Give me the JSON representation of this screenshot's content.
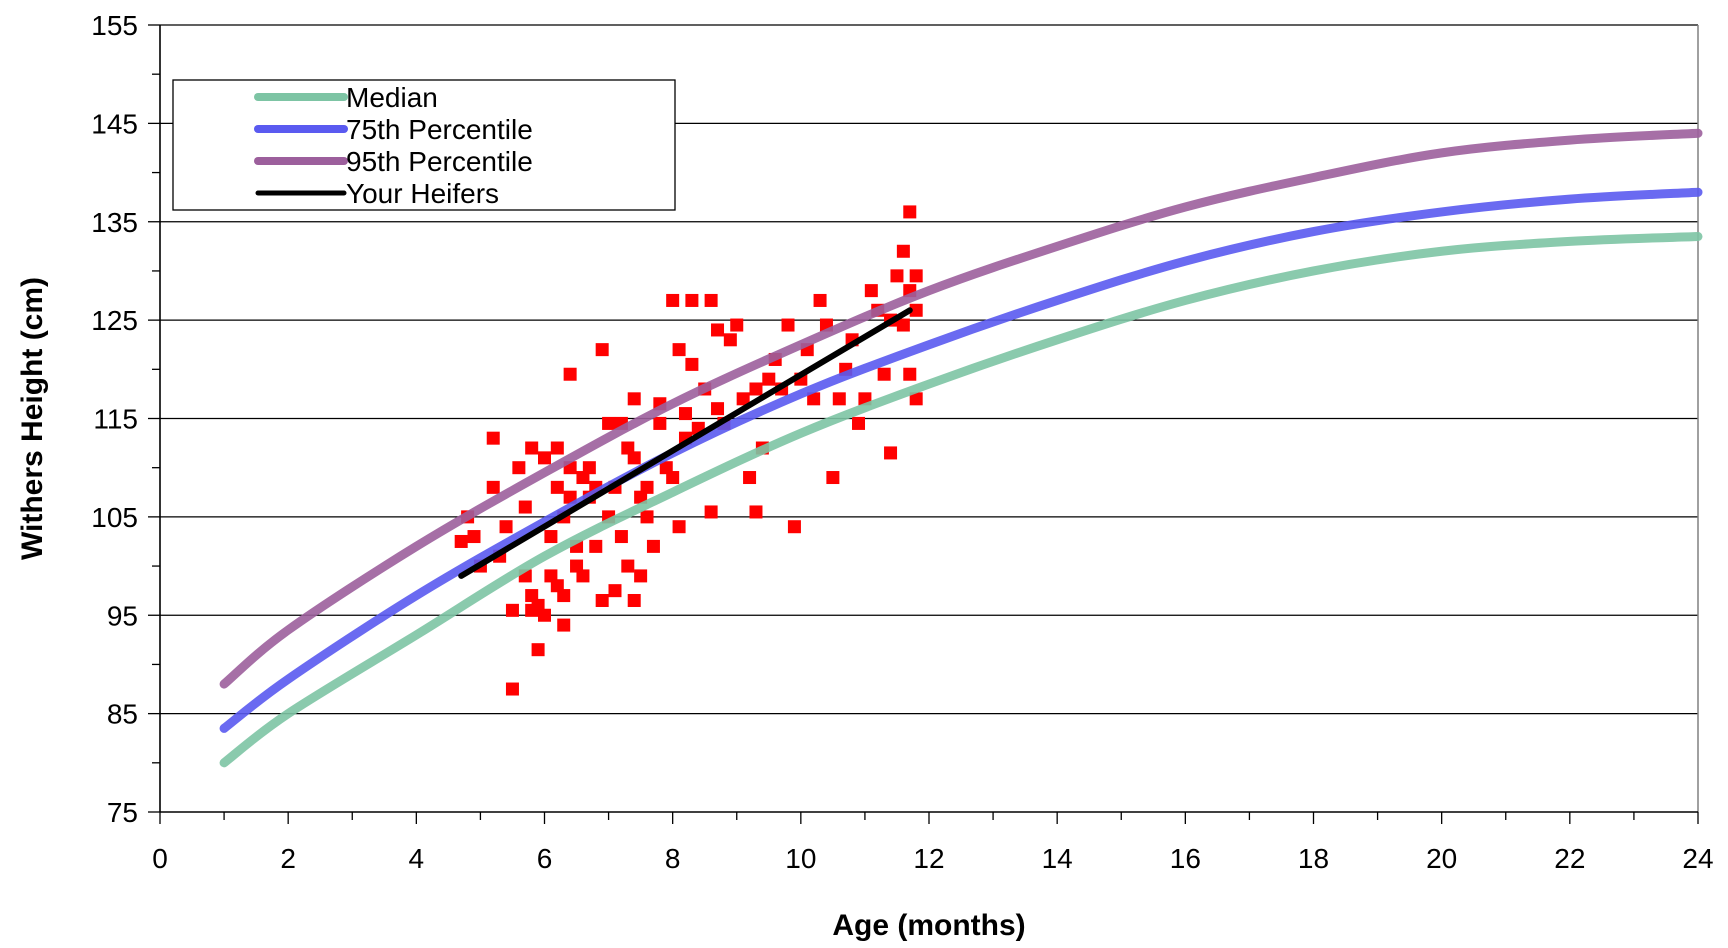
{
  "chart_data": {
    "type": "line",
    "title": "",
    "xlabel": "Age (months)",
    "ylabel": "Withers Height (cm)",
    "xlim": [
      0,
      24
    ],
    "ylim": [
      75,
      155
    ],
    "x_ticks": [
      0,
      2,
      4,
      6,
      8,
      10,
      12,
      14,
      16,
      18,
      20,
      22,
      24
    ],
    "x_tick_labels": [
      "0",
      "2",
      "4",
      "6",
      "8",
      "10",
      "12",
      "14",
      "16",
      "18",
      "20",
      "22",
      "24"
    ],
    "y_ticks": [
      75,
      85,
      95,
      105,
      115,
      125,
      135,
      145,
      155
    ],
    "y_tick_labels": [
      "75",
      "85",
      "95",
      "105",
      "115",
      "125",
      "135",
      "145",
      "155"
    ],
    "grid": "horizontal",
    "legend_position": "top-left",
    "series": [
      {
        "name": "Median",
        "color": "#7dc4a4",
        "x": [
          1,
          2,
          4,
          6,
          8,
          10,
          12,
          14,
          16,
          18,
          20,
          22,
          24
        ],
        "values": [
          80,
          85,
          93,
          101,
          107.5,
          113.5,
          118.5,
          123,
          127,
          130,
          132,
          133,
          133.5
        ]
      },
      {
        "name": "75th Percentile",
        "color": "#5a5af0",
        "x": [
          1,
          2,
          4,
          6,
          8,
          10,
          12,
          14,
          16,
          18,
          20,
          22,
          24
        ],
        "values": [
          83.5,
          88.5,
          97,
          104.5,
          111.5,
          117.5,
          122.5,
          127,
          131,
          134,
          136,
          137.3,
          138
        ]
      },
      {
        "name": "95th Percentile",
        "color": "#9c5f9c",
        "x": [
          1,
          2,
          4,
          6,
          8,
          10,
          12,
          14,
          16,
          18,
          20,
          22,
          24
        ],
        "values": [
          88,
          93.5,
          102,
          109.5,
          116.5,
          122.5,
          128,
          132.5,
          136.5,
          139.5,
          142,
          143.3,
          144
        ]
      },
      {
        "name": "Your Heifers",
        "color": "#000000",
        "x": [
          4.7,
          11.7
        ],
        "values": [
          99,
          126
        ]
      }
    ],
    "scatter": {
      "color": "#ff0000",
      "points": [
        [
          4.7,
          102.5
        ],
        [
          4.8,
          105
        ],
        [
          4.9,
          103
        ],
        [
          5.0,
          100
        ],
        [
          5.2,
          113
        ],
        [
          5.2,
          108
        ],
        [
          5.3,
          101
        ],
        [
          5.4,
          104
        ],
        [
          5.5,
          95.5
        ],
        [
          5.5,
          87.5
        ],
        [
          5.6,
          110
        ],
        [
          5.7,
          106
        ],
        [
          5.7,
          99
        ],
        [
          5.8,
          112
        ],
        [
          5.8,
          97
        ],
        [
          5.8,
          95.5
        ],
        [
          5.9,
          96
        ],
        [
          5.9,
          91.5
        ],
        [
          6.0,
          111
        ],
        [
          6.0,
          95
        ],
        [
          6.1,
          99
        ],
        [
          6.1,
          103
        ],
        [
          6.2,
          112
        ],
        [
          6.2,
          98
        ],
        [
          6.2,
          108
        ],
        [
          6.3,
          97
        ],
        [
          6.3,
          94
        ],
        [
          6.3,
          105
        ],
        [
          6.4,
          110
        ],
        [
          6.4,
          107
        ],
        [
          6.4,
          119.5
        ],
        [
          6.5,
          102
        ],
        [
          6.5,
          100
        ],
        [
          6.6,
          109
        ],
        [
          6.6,
          99
        ],
        [
          6.7,
          110
        ],
        [
          6.7,
          107
        ],
        [
          6.8,
          108
        ],
        [
          6.8,
          102
        ],
        [
          6.9,
          96.5
        ],
        [
          6.9,
          122
        ],
        [
          7.0,
          114.5
        ],
        [
          7.0,
          105
        ],
        [
          7.1,
          108
        ],
        [
          7.1,
          97.5
        ],
        [
          7.2,
          114.5
        ],
        [
          7.2,
          103
        ],
        [
          7.3,
          112
        ],
        [
          7.3,
          100
        ],
        [
          7.4,
          117
        ],
        [
          7.4,
          111
        ],
        [
          7.4,
          96.5
        ],
        [
          7.5,
          107
        ],
        [
          7.5,
          99
        ],
        [
          7.6,
          105
        ],
        [
          7.6,
          108
        ],
        [
          7.7,
          102
        ],
        [
          7.8,
          114.5
        ],
        [
          7.8,
          116.5
        ],
        [
          7.9,
          110
        ],
        [
          8.0,
          109
        ],
        [
          8.0,
          127
        ],
        [
          8.1,
          122
        ],
        [
          8.1,
          104
        ],
        [
          8.2,
          113
        ],
        [
          8.2,
          115.5
        ],
        [
          8.3,
          127
        ],
        [
          8.3,
          120.5
        ],
        [
          8.4,
          114
        ],
        [
          8.5,
          118
        ],
        [
          8.6,
          127
        ],
        [
          8.6,
          105.5
        ],
        [
          8.7,
          124
        ],
        [
          8.7,
          116
        ],
        [
          8.8,
          114.5
        ],
        [
          8.9,
          123
        ],
        [
          9.0,
          124.5
        ],
        [
          9.1,
          117
        ],
        [
          9.2,
          109
        ],
        [
          9.3,
          105.5
        ],
        [
          9.3,
          118
        ],
        [
          9.4,
          112
        ],
        [
          9.5,
          119
        ],
        [
          9.6,
          121
        ],
        [
          9.7,
          118
        ],
        [
          9.8,
          124.5
        ],
        [
          9.9,
          104
        ],
        [
          10.0,
          119
        ],
        [
          10.1,
          122
        ],
        [
          10.2,
          117
        ],
        [
          10.3,
          127
        ],
        [
          10.4,
          124.5
        ],
        [
          10.5,
          109
        ],
        [
          10.6,
          117
        ],
        [
          10.7,
          120
        ],
        [
          10.8,
          123
        ],
        [
          10.9,
          114.5
        ],
        [
          11.0,
          117
        ],
        [
          11.1,
          128
        ],
        [
          11.2,
          126
        ],
        [
          11.3,
          119.5
        ],
        [
          11.4,
          111.5
        ],
        [
          11.4,
          125
        ],
        [
          11.5,
          129.5
        ],
        [
          11.6,
          132
        ],
        [
          11.6,
          124.5
        ],
        [
          11.7,
          136
        ],
        [
          11.7,
          119.5
        ],
        [
          11.8,
          129.5
        ],
        [
          11.8,
          117
        ],
        [
          11.8,
          126
        ],
        [
          11.7,
          128
        ]
      ]
    }
  }
}
